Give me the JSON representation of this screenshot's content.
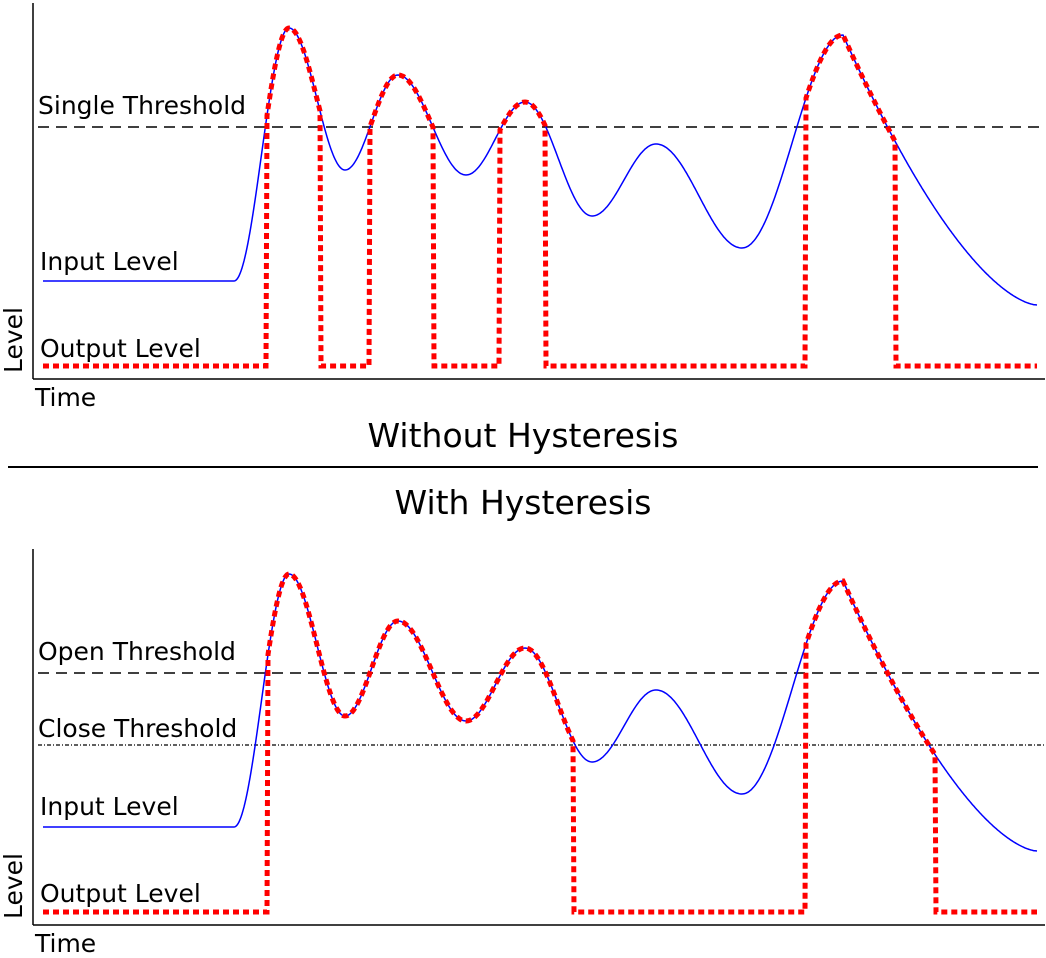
{
  "colors": {
    "input": "#0000ff",
    "output": "#ff0000",
    "axes": "#000000"
  },
  "top": {
    "caption": "Without Hysteresis",
    "threshold_label": "Single Threshold",
    "input_label": "Input Level",
    "output_label": "Output Level",
    "y_axis_label": "Level",
    "x_axis_label": "Time"
  },
  "bottom": {
    "caption": "With Hysteresis",
    "open_threshold_label": "Open Threshold",
    "close_threshold_label": "Close Threshold",
    "input_label": "Input Level",
    "output_label": "Output Level",
    "y_axis_label": "Level",
    "x_axis_label": "Time"
  }
}
